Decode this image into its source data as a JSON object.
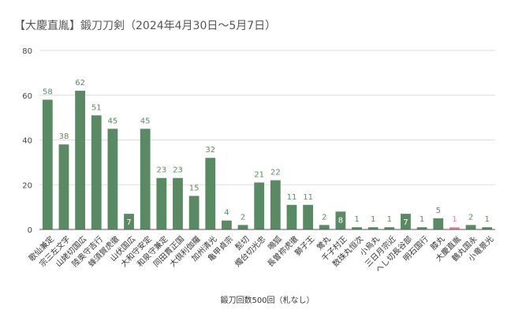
{
  "chart_data": {
    "type": "bar",
    "title": "【大慶直胤】鍛刀刀剣（2024年4月30日～5月7日）",
    "xlabel": "鍛刀回数500回（札なし）",
    "ylabel": "",
    "ylim": [
      0,
      80
    ],
    "yticks": [
      0,
      20,
      40,
      60,
      80
    ],
    "grid": true,
    "categories": [
      "歌仙兼定",
      "宗三左文字",
      "山姥切国広",
      "陸奥守吉行",
      "蜂須賀虎徹",
      "山伏国広",
      "大和守安定",
      "和泉守兼定",
      "同田貫正国",
      "大倶利伽羅",
      "加州清光",
      "亀甲貞宗",
      "髭切",
      "燭台切光忠",
      "鳴狐",
      "長曽祢虎徹",
      "獅子王",
      "鶯丸",
      "千子村正",
      "数珠丸恒次",
      "小烏丸",
      "三日月宗近",
      "へし切長谷部",
      "明石国行",
      "膝丸",
      "大慶直胤",
      "鶴丸国永",
      "小竜景光"
    ],
    "values": [
      58,
      38,
      62,
      51,
      45,
      7,
      45,
      23,
      23,
      15,
      32,
      4,
      2,
      21,
      22,
      11,
      11,
      2,
      8,
      1,
      1,
      1,
      7,
      1,
      5,
      1,
      2,
      1
    ],
    "highlight_category": "大慶直胤",
    "colors": {
      "bar": "#5a8a63",
      "bar_highlight": "#e08aa0",
      "label": "#5a8a63",
      "label_highlight": "#e08aa0",
      "label_inside": "#ffffff"
    }
  }
}
